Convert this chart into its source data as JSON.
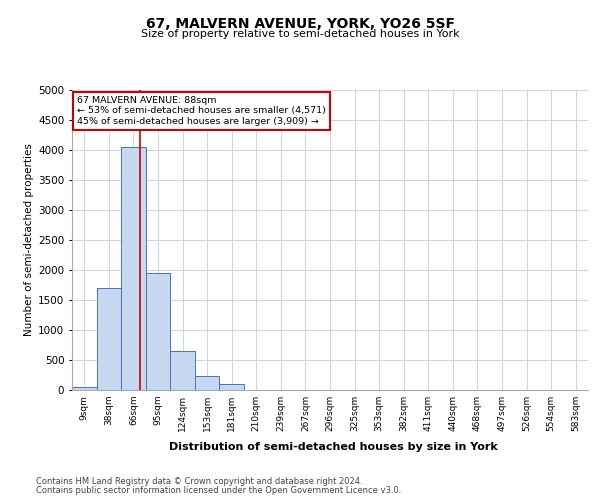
{
  "title1": "67, MALVERN AVENUE, YORK, YO26 5SF",
  "title2": "Size of property relative to semi-detached houses in York",
  "xlabel": "Distribution of semi-detached houses by size in York",
  "ylabel": "Number of semi-detached properties",
  "bar_values": [
    50,
    1700,
    4050,
    1950,
    650,
    230,
    100,
    0,
    0,
    0,
    0,
    0,
    0,
    0,
    0,
    0,
    0,
    0,
    0,
    0,
    0
  ],
  "bar_labels": [
    "9sqm",
    "38sqm",
    "66sqm",
    "95sqm",
    "124sqm",
    "153sqm",
    "181sqm",
    "210sqm",
    "239sqm",
    "267sqm",
    "296sqm",
    "325sqm",
    "353sqm",
    "382sqm",
    "411sqm",
    "440sqm",
    "468sqm",
    "497sqm",
    "526sqm",
    "554sqm",
    "583sqm"
  ],
  "ylim": [
    0,
    5000
  ],
  "yticks": [
    0,
    500,
    1000,
    1500,
    2000,
    2500,
    3000,
    3500,
    4000,
    4500,
    5000
  ],
  "bar_color": "#c6d9f0",
  "bar_edge_color": "#4472c4",
  "vline_x": 2.75,
  "vline_color": "#cc0000",
  "annotation_line1": "67 MALVERN AVENUE: 88sqm",
  "annotation_line2": "← 53% of semi-detached houses are smaller (4,571)",
  "annotation_line3": "45% of semi-detached houses are larger (3,909) →",
  "annotation_box_color": "#cc0000",
  "footer1": "Contains HM Land Registry data © Crown copyright and database right 2024.",
  "footer2": "Contains public sector information licensed under the Open Government Licence v3.0.",
  "background_color": "#ffffff",
  "grid_color": "#c8d4e8"
}
